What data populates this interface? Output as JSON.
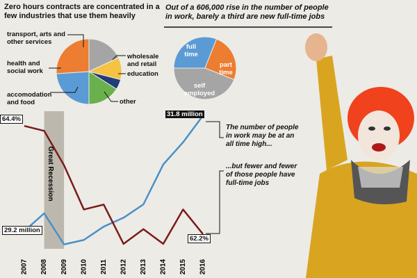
{
  "chart_data": [
    {
      "type": "pie",
      "title": "Zero hours contracts are concentrated in a few industries that use them heavily",
      "categories": [
        "transport, arts and other services",
        "wholesale and retail",
        "education",
        "other",
        "accomodation and food",
        "health and social work"
      ],
      "values": [
        18,
        11,
        5,
        16,
        24,
        26
      ],
      "colors": [
        "#a5a5a5",
        "#f5c242",
        "#1f3d7a",
        "#6ab04c",
        "#5b9bd5",
        "#ed7d31"
      ]
    },
    {
      "type": "pie",
      "title": "Out of a 606,000 rise in the number of people in work, barely a third are new full-time jobs",
      "categories": [
        "full time",
        "part time",
        "self employed"
      ],
      "values": [
        31,
        25,
        44
      ],
      "colors": [
        "#5b9bd5",
        "#ed7d31",
        "#a5a5a5"
      ]
    },
    {
      "type": "line",
      "x": [
        2007,
        2008,
        2009,
        2010,
        2011,
        2012,
        2013,
        2014,
        2015,
        2016
      ],
      "xlim": [
        2007,
        2016
      ],
      "ylim": [
        28.8,
        31.9
      ],
      "y2lim": [
        61.9,
        64.7
      ],
      "series": [
        {
          "color": "#4a90c8",
          "values": [
            29.2,
            29.6,
            28.9,
            29.0,
            29.3,
            29.5,
            29.8,
            30.7,
            31.2,
            31.8
          ],
          "value_labels": [
            "29.2 million",
            null,
            null,
            null,
            null,
            null,
            null,
            null,
            null,
            "31.8 million"
          ]
        },
        {
          "color": "#7b1a1a",
          "axis": "y2",
          "values": [
            64.4,
            64.3,
            63.6,
            62.7,
            62.8,
            62.0,
            62.3,
            62.0,
            62.7,
            62.2
          ],
          "value_labels": [
            "64.4%",
            null,
            null,
            null,
            null,
            null,
            null,
            null,
            null,
            "62.2%"
          ]
        }
      ],
      "shade": {
        "from": 2008,
        "to": 2009,
        "label": "Great Recession"
      },
      "annotations": [
        "The number of people in work may be at an all time high...",
        "...but fewer and fewer of those people have full-time jobs"
      ]
    }
  ]
}
